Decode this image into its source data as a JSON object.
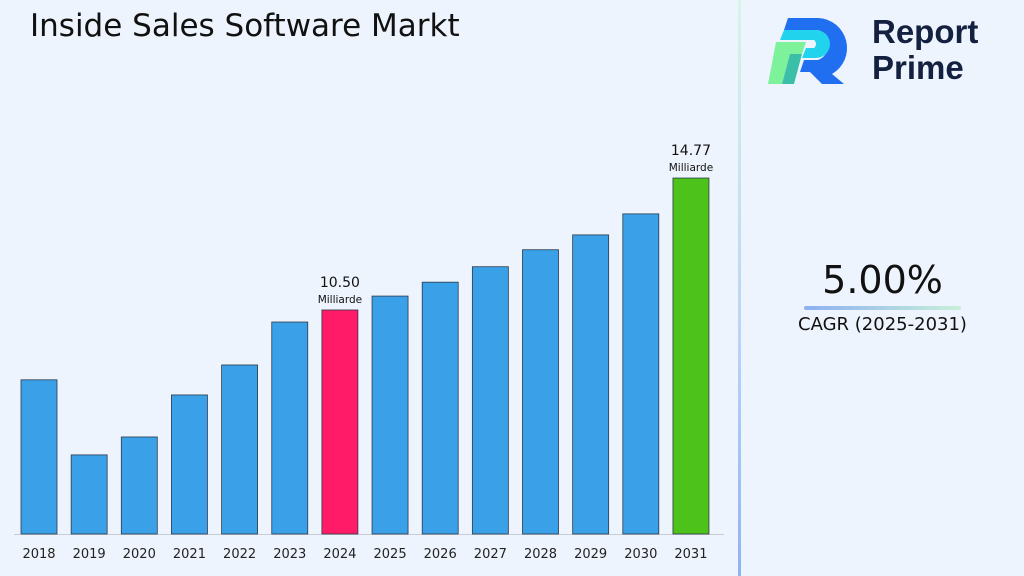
{
  "title": "Inside Sales Software Markt",
  "logo": {
    "line1": "Report",
    "line2": "Prime"
  },
  "cagr": {
    "value": "5.00%",
    "label": "CAGR (2025-2031)"
  },
  "colors": {
    "bar": "#3aa0e8",
    "highlight_2024": "#ff1b67",
    "highlight_2031": "#4cc21a"
  },
  "chart_data": {
    "type": "bar",
    "title": "Inside Sales Software Markt",
    "categories": [
      "2018",
      "2019",
      "2020",
      "2021",
      "2022",
      "2023",
      "2024",
      "2025",
      "2026",
      "2027",
      "2028",
      "2029",
      "2030",
      "2031"
    ],
    "values": [
      8.24,
      5.81,
      6.39,
      7.75,
      8.72,
      10.11,
      10.5,
      10.95,
      11.4,
      11.9,
      12.45,
      12.93,
      13.61,
      14.77
    ],
    "data_labels": {
      "2024": {
        "value": "10.50",
        "unit": "Milliarde"
      },
      "2031": {
        "value": "14.77",
        "unit": "Milliarde"
      }
    },
    "grid": false
  }
}
